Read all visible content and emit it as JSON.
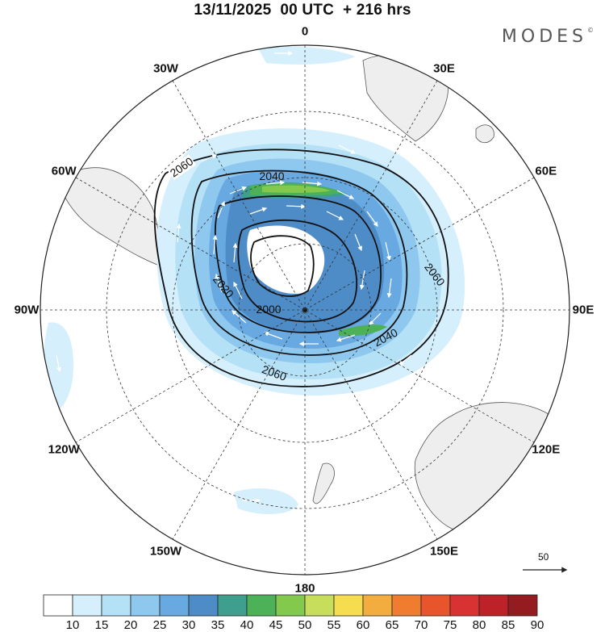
{
  "title": "13/11/2025  00 UTC  + 216 hrs",
  "brand": {
    "name": "MODES",
    "mark": "©"
  },
  "longitude_labels": [
    "0",
    "30E",
    "60E",
    "90E",
    "120E",
    "150E",
    "180",
    "150W",
    "120W",
    "90W",
    "60W",
    "30W"
  ],
  "contour_labels": [
    "2000",
    "2020",
    "2040",
    "2060"
  ],
  "reference_vector": {
    "label": "50"
  },
  "colorbar": {
    "labels": [
      "10",
      "15",
      "20",
      "25",
      "30",
      "35",
      "40",
      "45",
      "50",
      "55",
      "60",
      "65",
      "70",
      "75",
      "80",
      "85",
      "90"
    ],
    "colors": [
      "#ffffff",
      "#d5effc",
      "#b5e1f7",
      "#8ec8ef",
      "#67a9e0",
      "#4e8cc8",
      "#3f9f8e",
      "#4db157",
      "#82c94e",
      "#c6de5b",
      "#f5dd4f",
      "#f3ad3f",
      "#f07c2f",
      "#e8552c",
      "#d83232",
      "#bd2228",
      "#941b1f"
    ]
  },
  "colors": {
    "land": "#eeeeee",
    "coast": "#555555",
    "grid": "#333333",
    "contour": "#111111"
  }
}
